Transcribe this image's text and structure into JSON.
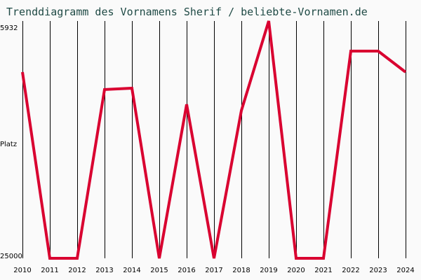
{
  "title": "Trenddiagramm des Vornamens Sherif / beliebte-Vornamen.de",
  "colors": {
    "line": "#d90030",
    "grid": "#000000",
    "background": "#fafafa",
    "title": "#1f4a45"
  },
  "y_axis": {
    "top_label": "5932",
    "middle_label": "Platz",
    "bottom_label": "25000"
  },
  "x_axis": {
    "labels": [
      "2010",
      "2011",
      "2012",
      "2013",
      "2014",
      "2015",
      "2016",
      "2017",
      "2018",
      "2019",
      "2020",
      "2021",
      "2022",
      "2023",
      "2024"
    ]
  },
  "chart_data": {
    "type": "line",
    "title": "Trenddiagramm des Vornamens Sherif / beliebte-Vornamen.de",
    "xlabel": "",
    "ylabel": "Platz",
    "y_inverted": true,
    "ylim": [
      5932,
      25000
    ],
    "grid": "vertical lines per year",
    "legend": "none",
    "categories": [
      "2010",
      "2011",
      "2012",
      "2013",
      "2014",
      "2015",
      "2016",
      "2017",
      "2018",
      "2019",
      "2020",
      "2021",
      "2022",
      "2023",
      "2024"
    ],
    "series": [
      {
        "name": "Sherif",
        "values": [
          10040,
          25000,
          25000,
          11440,
          11330,
          25000,
          12630,
          25000,
          13130,
          5932,
          25000,
          25000,
          8350,
          8350,
          10040
        ]
      }
    ]
  }
}
